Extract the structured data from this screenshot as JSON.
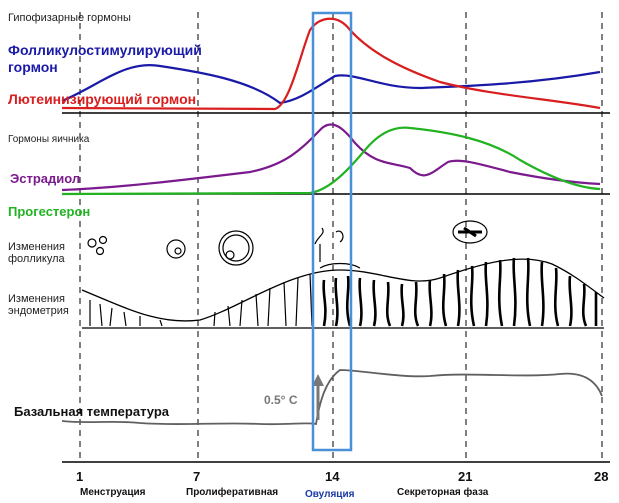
{
  "sections": {
    "pituitary": {
      "heading": "Гипофизарные гормоны",
      "fsh_label": "Фолликулостимулирующий",
      "fsh_label_2": "гормон",
      "lh_label": "Лютеинизирующий гормон"
    },
    "ovary": {
      "heading": "Гормоны яичника",
      "estradiol_label": "Эстрадиол",
      "progesterone_label": "Прогестерон"
    },
    "follicle": {
      "label_1": "Изменения",
      "label_2": "фолликула"
    },
    "endometrium": {
      "label_1": "Изменения",
      "label_2": "эндометрия"
    },
    "temperature": {
      "label": "Базальная температура",
      "rise_annotation": "0.5° C"
    }
  },
  "axis": {
    "ticks": [
      "1",
      "7",
      "14",
      "21",
      "28"
    ]
  },
  "phases": {
    "menstruation": "Менструация",
    "proliferative": "Пролиферативная",
    "ovulation": "Овуляция",
    "secretory": "Секреторная фаза"
  },
  "colors": {
    "fsh": "#1a1aa8",
    "lh": "#d81e1e",
    "estradiol": "#7a1a8c",
    "progesterone": "#22b322",
    "ovulation_box": "#4a90d9",
    "temperature": "#606060"
  }
}
